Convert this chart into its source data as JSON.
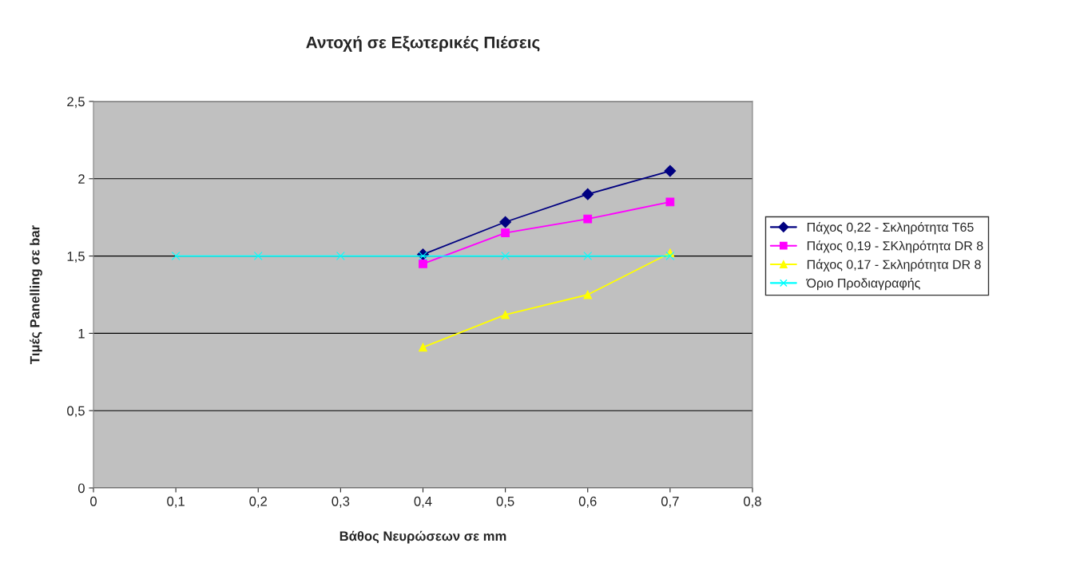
{
  "chart_data": {
    "type": "line",
    "title": "Αντοχή σε Εξωτερικές Πιέσεις",
    "xlabel": "Βάθος Νευρώσεων σε mm",
    "ylabel": "Τιμές Panelling σε bar",
    "xlim": [
      0,
      0.8
    ],
    "ylim": [
      0,
      2.5
    ],
    "xticks": [
      0,
      {
        "value": 0.1,
        "label": "0,1"
      },
      {
        "value": 0.2,
        "label": "0,2"
      },
      {
        "value": 0.3,
        "label": "0,3"
      },
      {
        "value": 0.4,
        "label": "0,4"
      },
      {
        "value": 0.5,
        "label": "0,5"
      },
      {
        "value": 0.6,
        "label": "0,6"
      },
      {
        "value": 0.7,
        "label": "0,7"
      },
      {
        "value": 0.8,
        "label": "0,8"
      }
    ],
    "yticks": [
      0,
      {
        "value": 0.5,
        "label": "0,5"
      },
      1,
      {
        "value": 1.5,
        "label": "1,5"
      },
      2,
      {
        "value": 2.5,
        "label": "2,5"
      }
    ],
    "grid": "y",
    "legend": "right",
    "series": [
      {
        "name": "Πάχος 0,22 - Σκληρότητα T65",
        "color": "#000080",
        "marker": "diamond",
        "x": [
          0.4,
          0.5,
          0.6,
          0.7
        ],
        "values": [
          1.51,
          1.72,
          1.9,
          2.05
        ]
      },
      {
        "name": "Πάχος 0,19 - ΣΚληρότητα DR 8",
        "color": "#ff00ff",
        "marker": "square",
        "x": [
          0.4,
          0.5,
          0.6,
          0.7
        ],
        "values": [
          1.45,
          1.65,
          1.74,
          1.85
        ]
      },
      {
        "name": "Πάχος 0,17 - Σκληρότητα DR 8",
        "color": "#ffff00",
        "marker": "triangle",
        "x": [
          0.4,
          0.5,
          0.6,
          0.7
        ],
        "values": [
          0.91,
          1.12,
          1.25,
          1.52
        ]
      },
      {
        "name": "Όριο Προδιαγραφής",
        "color": "#00ffff",
        "marker": "cross",
        "x": [
          0.1,
          0.2,
          0.3,
          0.4,
          0.5,
          0.6,
          0.7
        ],
        "values": [
          1.5,
          1.5,
          1.5,
          1.5,
          1.5,
          1.5,
          1.5
        ]
      }
    ]
  }
}
